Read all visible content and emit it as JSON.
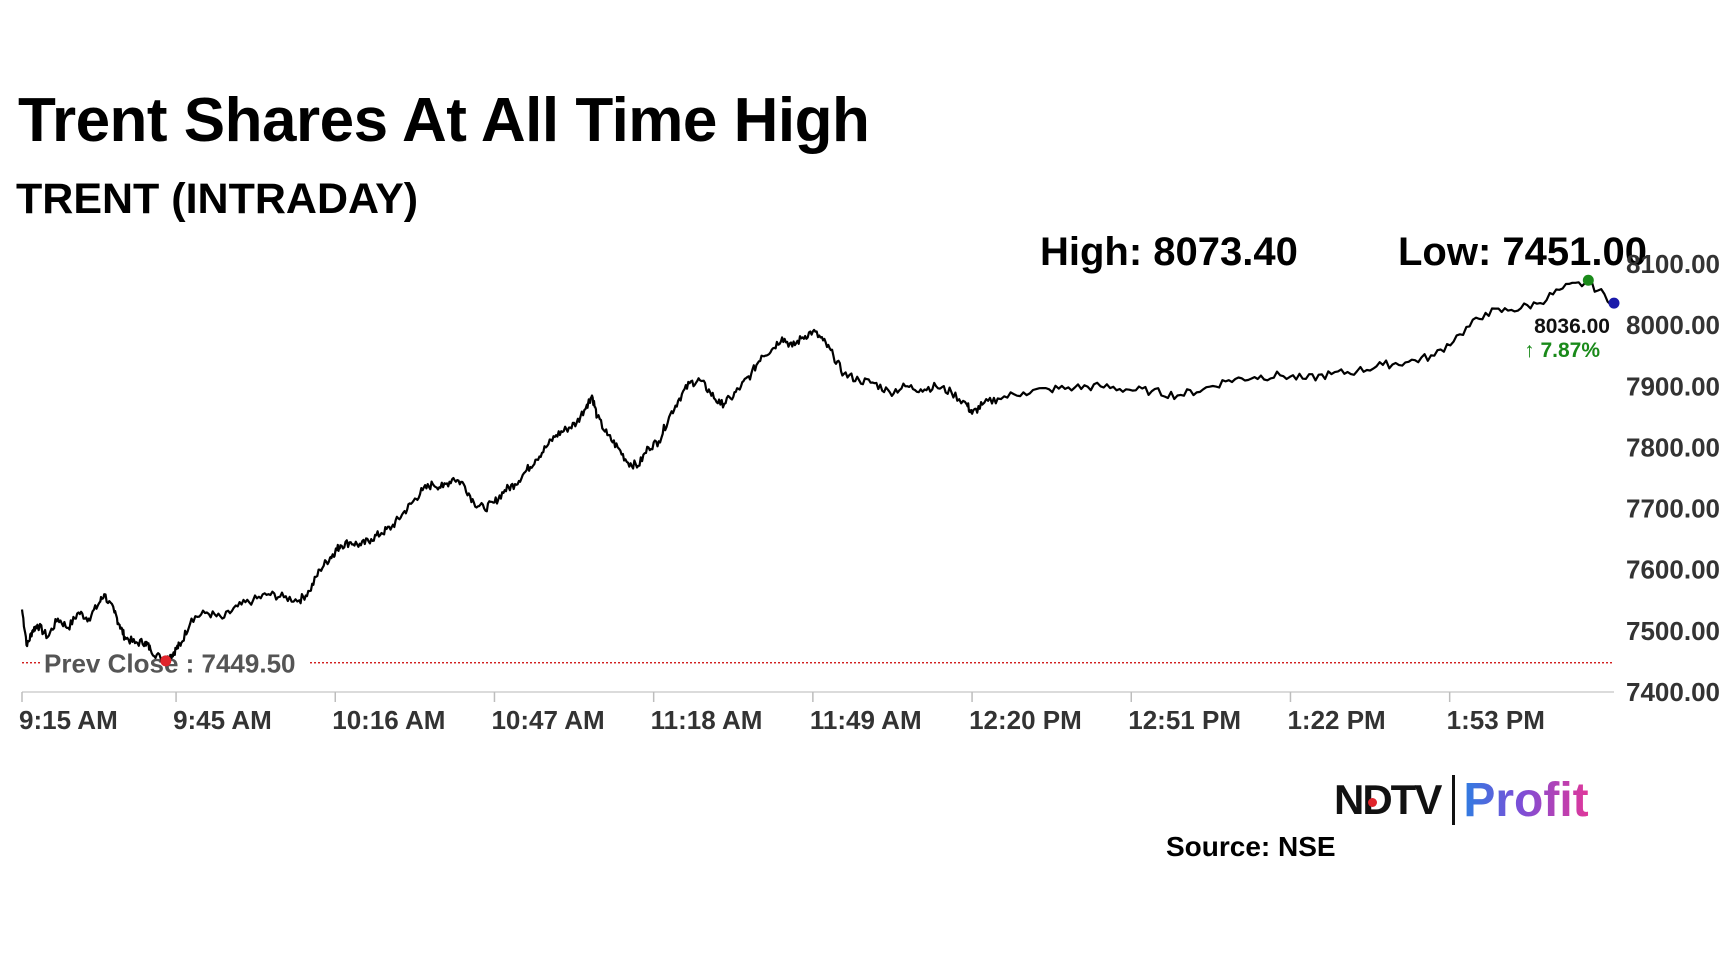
{
  "title": "Trent Shares At All Time High",
  "subtitle": "TRENT (INTRADAY)",
  "high_label": "High: 8073.40",
  "low_label": "Low: 7451.00",
  "source": "Source: NSE",
  "logo": {
    "left": "NDTV",
    "right": "Profit"
  },
  "colors": {
    "line": "#000000",
    "prev_close_line": "#cc0000",
    "high_dot": "#1a8a1a",
    "low_dot": "#e0242b",
    "last_dot": "#1a1aaa",
    "change": "#1a8a1a"
  },
  "chart_data": {
    "type": "line",
    "title": "Trent Shares At All Time High",
    "subtitle": "TRENT (INTRADAY)",
    "xlabel": "",
    "ylabel": "",
    "ylim": [
      7400,
      8100
    ],
    "yticks": [
      "7400.00",
      "7500.00",
      "7600.00",
      "7700.00",
      "7800.00",
      "7900.00",
      "8000.00",
      "8100.00"
    ],
    "xticks": [
      "9:15 AM",
      "9:45 AM",
      "10:16 AM",
      "10:47 AM",
      "11:18 AM",
      "11:49 AM",
      "12:20 PM",
      "12:51 PM",
      "1:22 PM",
      "1:53 PM"
    ],
    "xtick_minutes": [
      0,
      30,
      61,
      92,
      123,
      154,
      185,
      216,
      247,
      278
    ],
    "x_range_minutes": [
      0,
      310
    ],
    "prev_close": 7449.5,
    "prev_close_label": "Prev Close : 7449.50",
    "high": 8073.4,
    "low": 7451.0,
    "last_price": "8036.00",
    "change_pct": "↑ 7.87%",
    "series": [
      {
        "x": [
          0,
          1,
          2,
          3,
          5,
          7,
          9,
          11,
          13,
          15,
          16,
          18,
          19,
          20,
          22,
          24,
          25,
          27,
          28,
          29,
          30,
          31,
          33,
          36,
          39,
          42,
          45,
          48,
          51,
          54,
          56,
          58,
          60,
          61,
          62,
          64,
          66,
          68,
          70,
          72,
          74,
          76,
          78,
          80,
          82,
          84,
          86,
          88,
          90,
          92,
          94,
          96,
          98,
          100,
          102,
          104,
          106,
          108,
          110,
          111,
          112,
          114,
          116,
          118,
          120,
          122,
          124,
          126,
          128,
          130,
          132,
          134,
          136,
          138,
          140,
          142,
          144,
          146,
          148,
          150,
          152,
          154,
          156,
          158,
          160,
          163,
          166,
          169,
          172,
          175,
          178,
          181,
          184,
          185,
          187,
          190,
          195,
          200,
          205,
          210,
          215,
          220,
          225,
          230,
          235,
          240,
          245,
          250,
          255,
          260,
          265,
          270,
          275,
          280,
          285,
          290,
          295,
          300,
          305,
          310
        ],
        "y": [
          7535,
          7475,
          7500,
          7510,
          7490,
          7520,
          7505,
          7530,
          7520,
          7545,
          7560,
          7530,
          7510,
          7490,
          7480,
          7482,
          7470,
          7455,
          7451,
          7460,
          7470,
          7480,
          7520,
          7530,
          7520,
          7540,
          7550,
          7560,
          7555,
          7550,
          7565,
          7600,
          7620,
          7630,
          7640,
          7645,
          7640,
          7650,
          7660,
          7670,
          7690,
          7710,
          7730,
          7740,
          7735,
          7750,
          7740,
          7710,
          7700,
          7710,
          7730,
          7740,
          7760,
          7780,
          7800,
          7820,
          7830,
          7840,
          7870,
          7885,
          7850,
          7820,
          7800,
          7775,
          7770,
          7800,
          7810,
          7850,
          7880,
          7905,
          7910,
          7890,
          7870,
          7880,
          7900,
          7920,
          7950,
          7960,
          7980,
          7965,
          7980,
          7990,
          7975,
          7950,
          7920,
          7910,
          7905,
          7890,
          7900,
          7895,
          7900,
          7890,
          7870,
          7855,
          7870,
          7880,
          7890,
          7895,
          7898,
          7900,
          7895,
          7892,
          7885,
          7895,
          7910,
          7915,
          7918,
          7912,
          7920,
          7925,
          7935,
          7940,
          7950,
          7985,
          8020,
          8025,
          8035,
          8060,
          8070,
          8036
        ]
      }
    ]
  }
}
